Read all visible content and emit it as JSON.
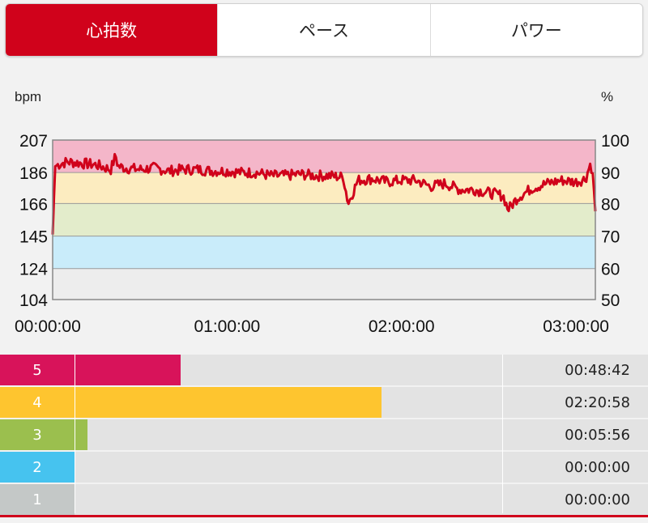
{
  "tabs": [
    {
      "label": "心拍数",
      "active": true
    },
    {
      "label": "ペース",
      "active": false
    },
    {
      "label": "パワー",
      "active": false
    }
  ],
  "chart_data": {
    "type": "line",
    "left_axis_label": "bpm",
    "right_axis_label": "%",
    "y_ticks_left": [
      "207",
      "186",
      "166",
      "145",
      "124",
      "104"
    ],
    "y_ticks_right": [
      "100",
      "90",
      "80",
      "70",
      "60",
      "50"
    ],
    "ylim": [
      104,
      207
    ],
    "x_ticks": [
      "00:00:00",
      "01:00:00",
      "02:00:00",
      "03:00:00"
    ],
    "x_tick_seconds": [
      0,
      3600,
      7200,
      10800
    ],
    "xlim_seconds": [
      0,
      11200
    ],
    "zone_bounds_bpm": [
      104,
      124,
      145,
      166,
      186,
      207
    ],
    "zone_colors": [
      "#ededed",
      "#c9ecfa",
      "#e3eccb",
      "#fcecc0",
      "#f4b6c9"
    ],
    "line_color": "#d0021b",
    "series": [
      {
        "x_seconds": [
          0,
          50,
          100,
          300,
          600,
          900,
          1200,
          1300,
          1350,
          1500,
          1800,
          2100,
          2400,
          2700,
          3000,
          3300,
          3600,
          3900,
          4200,
          4500,
          4800,
          5100,
          5400,
          5700,
          6000,
          6100,
          6300,
          6600,
          6900,
          7200,
          7500,
          7800,
          8100,
          8400,
          8700,
          9000,
          9300,
          9400,
          9600,
          9900,
          10200,
          10500,
          10800,
          11000,
          11100,
          11150,
          11200
        ],
        "bpm": [
          146,
          190,
          191,
          193,
          192,
          191,
          188,
          197,
          190,
          189,
          188,
          189,
          187,
          188,
          188,
          187,
          187,
          186,
          186,
          184,
          184,
          185,
          184,
          184,
          183,
          166,
          181,
          182,
          180,
          181,
          181,
          177,
          179,
          175,
          175,
          173,
          171,
          162,
          170,
          176,
          179,
          181,
          180,
          182,
          192,
          185,
          161
        ]
      }
    ]
  },
  "zones": [
    {
      "label": "5",
      "time": "00:48:42",
      "fraction": 0.248,
      "color": "#d8135a"
    },
    {
      "label": "4",
      "time": "02:20:58",
      "fraction": 0.717,
      "color": "#fec52f"
    },
    {
      "label": "3",
      "time": "00:05:56",
      "fraction": 0.03,
      "color": "#9bbf4e"
    },
    {
      "label": "2",
      "time": "00:00:00",
      "fraction": 0.0,
      "color": "#46c3ef"
    },
    {
      "label": "1",
      "time": "00:00:00",
      "fraction": 0.0,
      "color": "#c4c8c7"
    }
  ]
}
